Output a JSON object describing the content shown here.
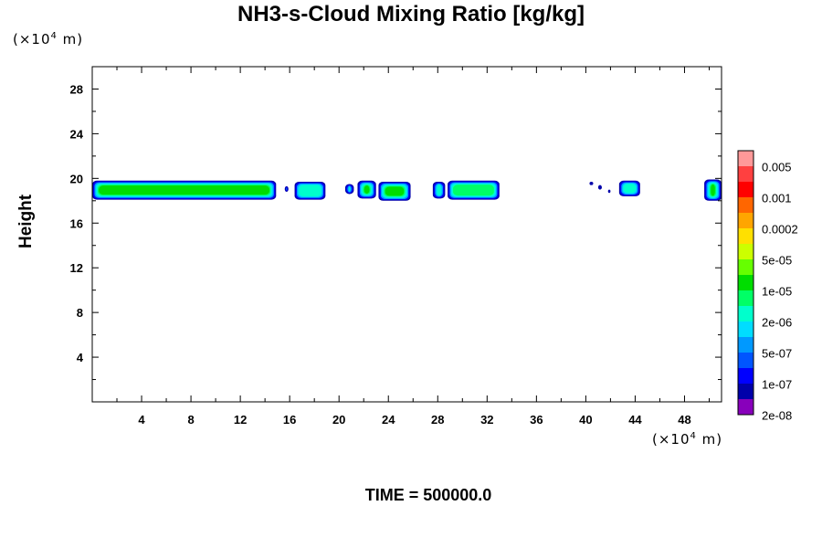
{
  "title": "NH3-s-Cloud Mixing Ratio [kg/kg]",
  "y_unit": {
    "prefix": "(×10",
    "exp": "4",
    "suffix": " m)"
  },
  "x_unit": {
    "prefix": "(×10",
    "exp": "4",
    "suffix": " m)"
  },
  "time_label": "TIME = 500000.0",
  "chart_data": {
    "type": "heatmap",
    "title": "NH3-s-Cloud Mixing Ratio [kg/kg]",
    "xlabel": "",
    "ylabel": "Height",
    "xlim": [
      0,
      51
    ],
    "ylim": [
      0,
      30
    ],
    "x_ticks": [
      4,
      8,
      12,
      16,
      20,
      24,
      28,
      32,
      36,
      40,
      44,
      48
    ],
    "y_ticks": [
      4,
      8,
      12,
      16,
      20,
      24,
      28
    ],
    "colorbar": {
      "labels": [
        "0.005",
        "0.001",
        "0.0002",
        "5e-05",
        "1e-05",
        "2e-06",
        "5e-07",
        "1e-07",
        "2e-08"
      ],
      "colors": [
        "#FF9999",
        "#FF4040",
        "#FF0000",
        "#FF6600",
        "#FFA500",
        "#FFE000",
        "#CCFF00",
        "#66FF00",
        "#00DD00",
        "#00FF66",
        "#00FFCC",
        "#00DDFF",
        "#0099FF",
        "#0055FF",
        "#0000FF",
        "#0000AA",
        "#8800BB"
      ]
    },
    "cloud_cells": [
      {
        "x0": 0.0,
        "x1": 14.9,
        "top": 19.8,
        "bottom": 18.1,
        "peak": "#00DD00"
      },
      {
        "x0": 15.6,
        "x1": 15.9,
        "top": 19.3,
        "bottom": 18.8,
        "peak": "#00FFCC"
      },
      {
        "x0": 16.4,
        "x1": 18.9,
        "top": 19.7,
        "bottom": 18.1,
        "peak": "#00FFCC"
      },
      {
        "x0": 20.5,
        "x1": 21.2,
        "top": 19.5,
        "bottom": 18.6,
        "peak": "#00FFCC"
      },
      {
        "x0": 21.5,
        "x1": 23.0,
        "top": 19.8,
        "bottom": 18.2,
        "peak": "#00DD00"
      },
      {
        "x0": 23.2,
        "x1": 25.8,
        "top": 19.7,
        "bottom": 18.0,
        "peak": "#00DD00"
      },
      {
        "x0": 27.6,
        "x1": 28.6,
        "top": 19.7,
        "bottom": 18.2,
        "peak": "#00FFCC"
      },
      {
        "x0": 28.8,
        "x1": 33.0,
        "top": 19.8,
        "bottom": 18.1,
        "peak": "#00FF66"
      },
      {
        "x0": 40.3,
        "x1": 40.6,
        "top": 19.7,
        "bottom": 19.4,
        "peak": "#0000AA"
      },
      {
        "x0": 41.0,
        "x1": 41.3,
        "top": 19.4,
        "bottom": 19.0,
        "peak": "#0000AA"
      },
      {
        "x0": 41.8,
        "x1": 42.0,
        "top": 19.0,
        "bottom": 18.7,
        "peak": "#0000AA"
      },
      {
        "x0": 42.7,
        "x1": 44.4,
        "top": 19.8,
        "bottom": 18.4,
        "peak": "#00FFCC"
      },
      {
        "x0": 49.6,
        "x1": 51.0,
        "top": 19.9,
        "bottom": 18.0,
        "peak": "#00DD00"
      }
    ]
  }
}
